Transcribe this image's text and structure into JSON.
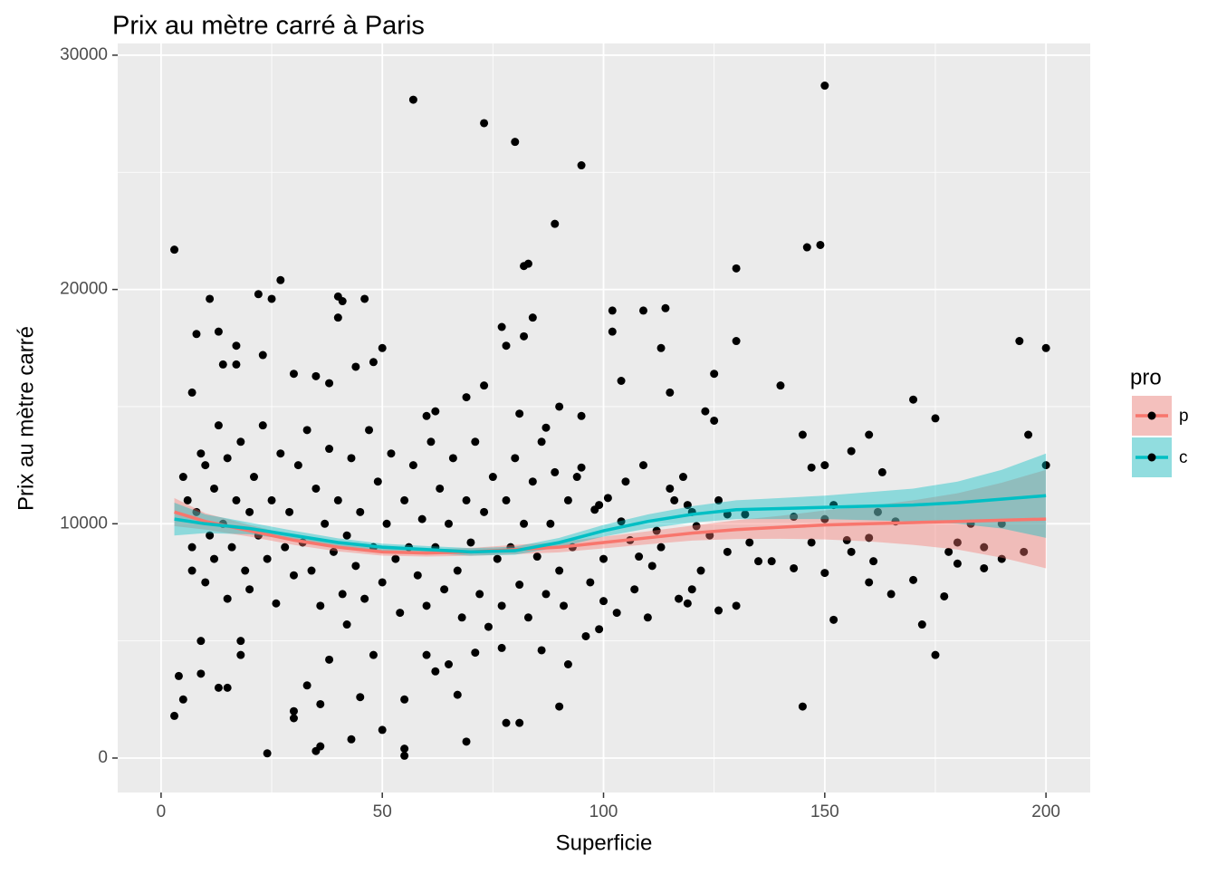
{
  "chart_data": {
    "type": "scatter-smooth",
    "title": "Prix au mètre carré à Paris",
    "x_label": "Superficie",
    "y_label": "Prix au mètre carré",
    "xlim": [
      -9.8,
      210
    ],
    "ylim": [
      -1470,
      30500
    ],
    "xticks": [
      0,
      50,
      100,
      150,
      200
    ],
    "yticks": [
      0,
      10000,
      20000,
      30000
    ],
    "xminor": [
      25,
      75,
      125,
      175
    ],
    "yminor": [
      5000,
      15000,
      25000
    ],
    "grid": true,
    "legend_title": "pro",
    "legend_position": "right",
    "points": {
      "color": "#000000",
      "x": [
        3,
        57,
        73,
        80,
        95,
        89,
        83,
        82,
        150,
        130,
        146,
        149,
        27,
        22,
        25,
        11,
        40,
        41,
        46,
        40,
        8,
        13,
        17,
        23,
        50,
        48,
        44,
        14,
        17,
        30,
        35,
        38,
        73,
        69,
        7,
        77,
        78,
        84,
        82,
        102,
        102,
        109,
        114,
        113,
        104,
        115,
        125,
        130,
        140,
        194,
        200,
        170,
        175,
        196,
        200,
        145,
        147,
        150,
        156,
        160,
        163,
        123,
        125,
        90,
        95,
        87,
        81,
        60,
        62,
        3,
        4,
        5,
        9,
        9,
        13,
        15,
        18,
        18,
        24,
        30,
        30,
        33,
        36,
        35,
        36,
        43,
        50,
        55,
        55,
        69,
        78,
        81,
        90,
        145,
        175,
        172,
        177,
        170,
        165,
        160,
        152,
        150,
        143,
        130,
        126,
        119,
        120,
        110,
        103,
        96,
        99,
        100,
        92,
        86,
        77,
        71,
        65,
        62,
        60,
        67,
        55,
        45,
        38,
        42,
        48,
        186,
        190,
        186,
        180,
        180,
        178,
        190,
        195,
        183,
        166,
        162,
        160,
        161,
        156,
        155,
        152,
        150,
        147,
        143,
        138,
        135,
        133,
        132,
        128,
        126,
        121,
        119,
        116,
        112,
        108,
        106,
        104,
        101,
        98,
        94,
        5,
        6,
        7,
        7,
        8,
        9,
        10,
        10,
        11,
        12,
        12,
        13,
        14,
        15,
        15,
        16,
        17,
        18,
        19,
        20,
        20,
        21,
        22,
        23,
        24,
        25,
        26,
        27,
        28,
        29,
        30,
        31,
        32,
        33,
        34,
        35,
        36,
        37,
        38,
        39,
        40,
        41,
        42,
        43,
        44,
        45,
        46,
        47,
        48,
        49,
        50,
        51,
        52,
        53,
        54,
        55,
        56,
        57,
        58,
        59,
        60,
        61,
        62,
        63,
        64,
        65,
        66,
        67,
        68,
        69,
        70,
        71,
        72,
        73,
        74,
        75,
        76,
        77,
        78,
        79,
        80,
        81,
        82,
        83,
        84,
        85,
        86,
        87,
        88,
        89,
        90,
        91,
        92,
        93,
        95,
        97,
        99,
        100,
        105,
        107,
        109,
        111,
        113,
        115,
        117,
        118,
        120,
        122,
        124,
        128
      ],
      "y": [
        21700,
        28100,
        27100,
        26300,
        25300,
        22800,
        21100,
        21000,
        28700,
        20900,
        21800,
        21900,
        20400,
        19800,
        19600,
        19600,
        19700,
        19500,
        19600,
        18800,
        18100,
        18200,
        17600,
        17200,
        17500,
        16900,
        16700,
        16800,
        16800,
        16400,
        16300,
        16000,
        15900,
        15400,
        15600,
        18400,
        17600,
        18800,
        18000,
        19100,
        18200,
        19100,
        19200,
        17500,
        16100,
        15600,
        16400,
        17800,
        15900,
        17800,
        17500,
        15300,
        14500,
        13800,
        12500,
        13800,
        12400,
        12500,
        13100,
        13800,
        12200,
        14800,
        14400,
        15000,
        14600,
        14100,
        14700,
        14600,
        14800,
        1800,
        3500,
        2500,
        3600,
        5000,
        3000,
        3000,
        4400,
        5000,
        200,
        1700,
        2000,
        3100,
        2300,
        300,
        500,
        800,
        1200,
        400,
        100,
        700,
        1500,
        1500,
        2200,
        2200,
        4400,
        5700,
        6900,
        7600,
        7000,
        7500,
        5900,
        7900,
        8100,
        6500,
        6300,
        6600,
        7200,
        6000,
        6200,
        5200,
        5500,
        6700,
        4000,
        4600,
        4700,
        4500,
        4000,
        3700,
        4400,
        2700,
        2500,
        2600,
        4200,
        5700,
        4400,
        8100,
        8500,
        9000,
        8300,
        9200,
        8800,
        10000,
        8800,
        10000,
        10100,
        10500,
        9400,
        8400,
        8800,
        9300,
        10800,
        10200,
        9200,
        10300,
        8400,
        8400,
        9200,
        10400,
        10400,
        11000,
        9900,
        10800,
        11000,
        9700,
        8600,
        9300,
        10100,
        11100,
        10600,
        12000,
        12000,
        11000,
        9000,
        8000,
        10500,
        13000,
        12500,
        7500,
        9500,
        11500,
        8500,
        14200,
        10000,
        6800,
        12800,
        9000,
        11000,
        13500,
        8000,
        10500,
        7200,
        12000,
        9500,
        14200,
        8500,
        11000,
        6600,
        13000,
        9000,
        10500,
        7800,
        12500,
        9200,
        14000,
        8000,
        11500,
        6500,
        10000,
        13200,
        8800,
        11000,
        7000,
        9500,
        12800,
        8200,
        10500,
        6800,
        14000,
        9000,
        11800,
        7500,
        10000,
        13000,
        8500,
        6200,
        11000,
        9000,
        12500,
        7800,
        10200,
        6500,
        13500,
        9000,
        11500,
        7200,
        10000,
        12800,
        8000,
        6000,
        11000,
        9200,
        13500,
        7000,
        10500,
        5600,
        12000,
        8500,
        6500,
        11000,
        9000,
        12800,
        7400,
        10000,
        6000,
        11800,
        8600,
        13500,
        7000,
        10000,
        12200,
        8000,
        6500,
        11000,
        9000,
        12400,
        7500,
        10800,
        8500,
        11800,
        7200,
        12500,
        8200,
        9000,
        11500,
        6800,
        12000,
        10500,
        8000,
        9500,
        8800
      ]
    },
    "series": [
      {
        "name": "p",
        "color": "#F8766D",
        "x": [
          3,
          10,
          20,
          30,
          40,
          50,
          60,
          70,
          80,
          90,
          100,
          110,
          120,
          130,
          140,
          150,
          160,
          170,
          180,
          190,
          200
        ],
        "values": [
          10500,
          10100,
          9700,
          9300,
          9000,
          8800,
          8750,
          8800,
          8900,
          9000,
          9200,
          9400,
          9600,
          9750,
          9850,
          9950,
          10000,
          10050,
          10100,
          10150,
          10200
        ],
        "lower": [
          9900,
          9750,
          9450,
          9100,
          8820,
          8640,
          8600,
          8630,
          8700,
          8780,
          8950,
          9120,
          9280,
          9350,
          9360,
          9330,
          9250,
          9100,
          8900,
          8550,
          8100
        ],
        "upper": [
          11100,
          10450,
          9950,
          9500,
          9180,
          8960,
          8900,
          8970,
          9100,
          9220,
          9450,
          9680,
          9920,
          10150,
          10340,
          10570,
          10750,
          11000,
          11300,
          11750,
          12300
        ]
      },
      {
        "name": "c",
        "color": "#00BFC4",
        "x": [
          3,
          10,
          20,
          30,
          40,
          50,
          60,
          70,
          80,
          90,
          100,
          110,
          120,
          130,
          140,
          150,
          160,
          170,
          180,
          190,
          200
        ],
        "values": [
          10200,
          10000,
          9800,
          9500,
          9200,
          9000,
          8900,
          8800,
          8850,
          9200,
          9700,
          10100,
          10400,
          10600,
          10650,
          10700,
          10750,
          10800,
          10900,
          11050,
          11200
        ],
        "lower": [
          9500,
          9600,
          9550,
          9300,
          9020,
          8850,
          8750,
          8640,
          8680,
          9000,
          9450,
          9800,
          10050,
          10200,
          10200,
          10200,
          10150,
          10100,
          10000,
          9800,
          9400
        ],
        "upper": [
          10900,
          10400,
          10050,
          9700,
          9380,
          9150,
          9050,
          8960,
          9020,
          9400,
          9950,
          10400,
          10750,
          11000,
          11100,
          11200,
          11350,
          11500,
          11800,
          12300,
          13000
        ]
      }
    ]
  }
}
